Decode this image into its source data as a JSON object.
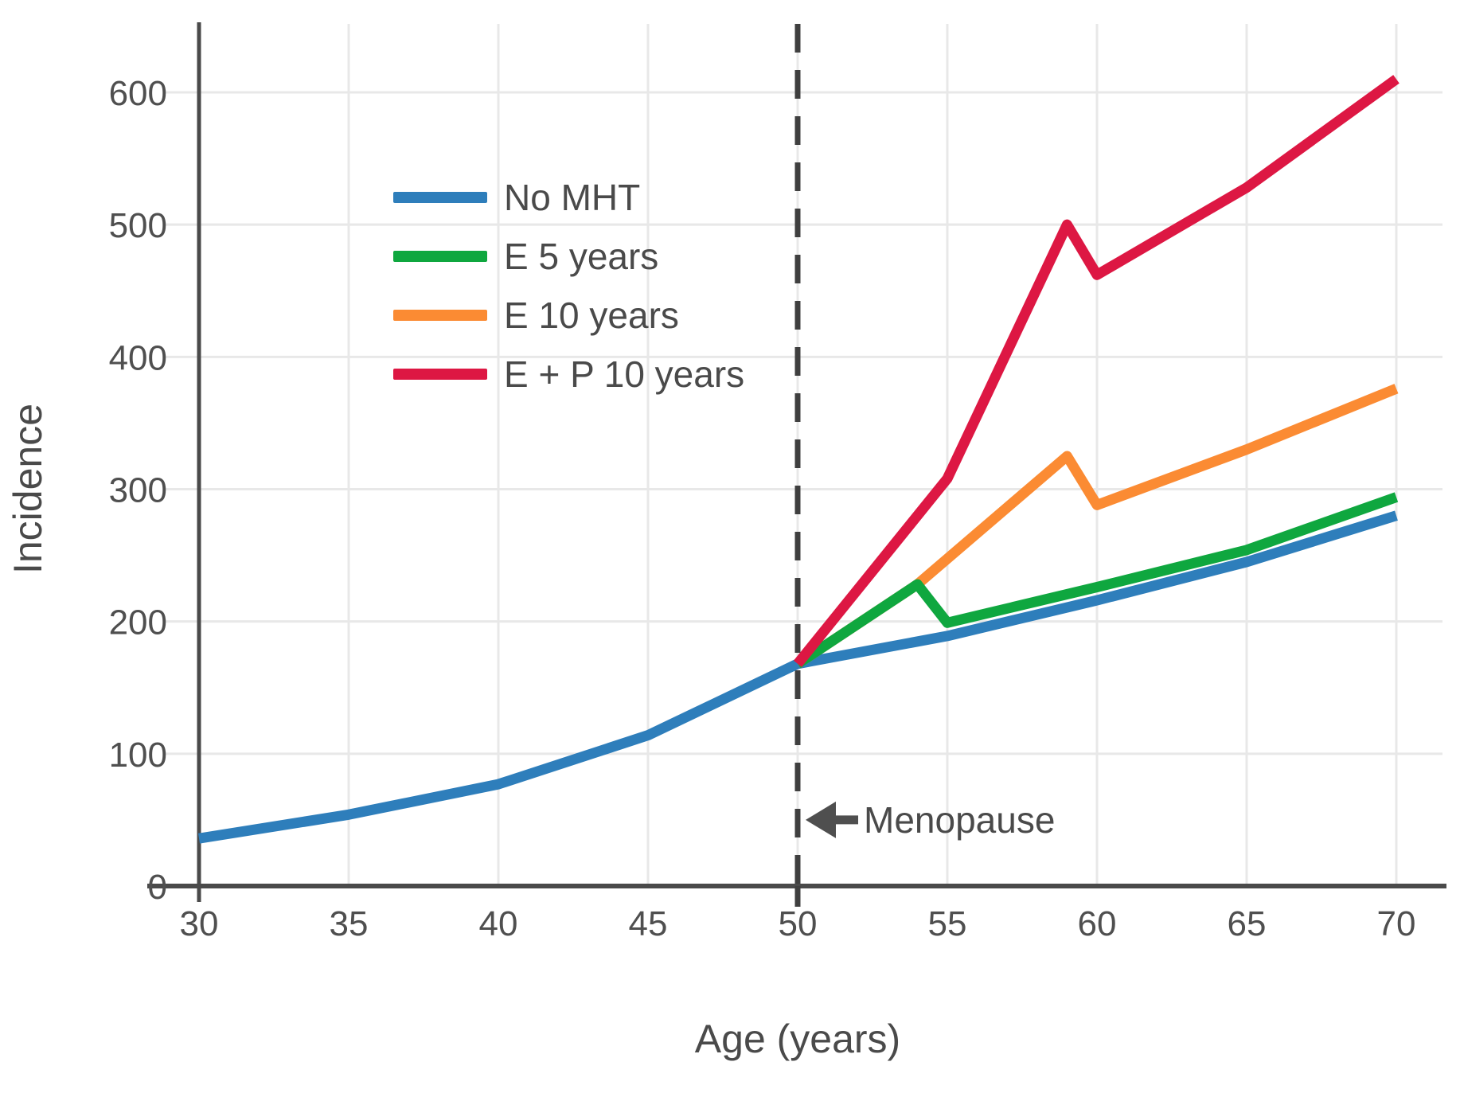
{
  "chart_data": {
    "type": "line",
    "title": "",
    "xlabel": "Age (years)",
    "ylabel": "Incidence",
    "xlim": [
      30,
      70
    ],
    "ylim": [
      0,
      600
    ],
    "xticks": [
      30,
      35,
      40,
      45,
      50,
      55,
      60,
      65,
      70
    ],
    "yticks": [
      0,
      100,
      200,
      300,
      400,
      500,
      600
    ],
    "grid": true,
    "legend_position": "upper-left-inside",
    "series": [
      {
        "name": "No MHT",
        "color": "#2e7ebb",
        "points": [
          [
            30,
            36
          ],
          [
            35,
            54
          ],
          [
            40,
            77
          ],
          [
            45,
            114
          ],
          [
            50,
            168
          ],
          [
            55,
            189
          ],
          [
            60,
            216
          ],
          [
            65,
            245
          ],
          [
            70,
            280
          ]
        ]
      },
      {
        "name": "E 5 years",
        "color": "#0fa73f",
        "points": [
          [
            50,
            168
          ],
          [
            54,
            228
          ],
          [
            55,
            199
          ],
          [
            60,
            226
          ],
          [
            65,
            254
          ],
          [
            70,
            294
          ]
        ]
      },
      {
        "name": "E 10 years",
        "color": "#fb8b33",
        "points": [
          [
            50,
            168
          ],
          [
            54,
            228
          ],
          [
            59,
            325
          ],
          [
            60,
            288
          ],
          [
            65,
            330
          ],
          [
            70,
            376
          ]
        ]
      },
      {
        "name": "E + P 10 years",
        "color": "#dd1743",
        "points": [
          [
            50,
            168
          ],
          [
            55,
            308
          ],
          [
            59,
            500
          ],
          [
            60,
            462
          ],
          [
            65,
            528
          ],
          [
            70,
            610
          ]
        ]
      }
    ],
    "annotations": [
      {
        "type": "vline-with-arrow",
        "label": "Menopause",
        "x": 50,
        "label_value_y": 50
      }
    ]
  },
  "style_colors": {
    "axis": "#4a4a4a",
    "grid": "#e8e8e8",
    "tick_text": "#4f4f4f",
    "label_text": "#4a4a4a",
    "dashed_line": "#3f3f3f",
    "arrow": "#4f4f4f"
  }
}
